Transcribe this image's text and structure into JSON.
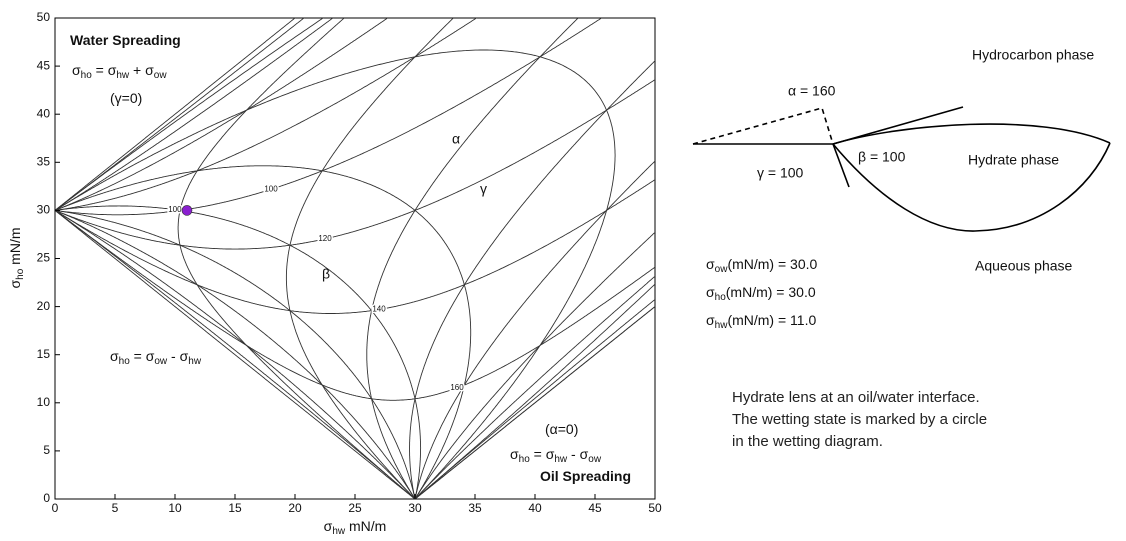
{
  "chart_data": {
    "type": "contour",
    "xlabel": {
      "parts": [
        {
          "t": "σ",
          "sub": "hw"
        },
        {
          "t": " mN/m"
        }
      ]
    },
    "ylabel": {
      "parts": [
        {
          "t": "σ",
          "sub": "ho"
        },
        {
          "t": " mN/m"
        }
      ]
    },
    "xlim": [
      0,
      50
    ],
    "ylim": [
      0,
      50
    ],
    "xticks": [
      0,
      5,
      10,
      15,
      20,
      25,
      30,
      35,
      40,
      45,
      50
    ],
    "yticks": [
      0,
      5,
      10,
      15,
      20,
      25,
      30,
      35,
      40,
      45,
      50
    ],
    "families": [
      {
        "name": "α",
        "levels": [
          0,
          20,
          40,
          60,
          80,
          100,
          120,
          140,
          160
        ]
      },
      {
        "name": "β",
        "levels": [
          20,
          40,
          60,
          80,
          100,
          120,
          140,
          160
        ],
        "labels": [
          100
        ]
      },
      {
        "name": "γ",
        "levels": [
          0,
          20,
          40,
          60,
          80,
          100,
          120,
          140,
          160,
          180
        ],
        "labels": [
          100,
          120,
          140,
          160
        ]
      }
    ],
    "annotations": [
      {
        "parts": [
          {
            "t": "Water Spreading"
          }
        ],
        "bold": true
      },
      {
        "parts": [
          {
            "t": "σ",
            "sub": "ho"
          },
          {
            "t": " = σ",
            "sub": "hw"
          },
          {
            "t": " + σ",
            "sub": "ow"
          }
        ]
      },
      {
        "parts": [
          {
            "t": "(γ=0)"
          }
        ]
      },
      {
        "parts": [
          {
            "t": "σ",
            "sub": "ho"
          },
          {
            "t": " = σ",
            "sub": "ow"
          },
          {
            "t": " - σ",
            "sub": "hw"
          }
        ]
      },
      {
        "parts": [
          {
            "t": "(α=0)"
          }
        ]
      },
      {
        "parts": [
          {
            "t": "σ",
            "sub": "ho"
          },
          {
            "t": " = σ",
            "sub": "hw"
          },
          {
            "t": " - σ",
            "sub": "ow"
          }
        ]
      },
      {
        "parts": [
          {
            "t": "Oil Spreading"
          }
        ],
        "bold": true
      }
    ],
    "point_color": "#8a1fcf",
    "properties": [
      {
        "parts": [
          {
            "t": "σ",
            "sub": "ow"
          },
          {
            "t": "(mN/m) = "
          }
        ],
        "value": 30,
        "value_label": "30.0"
      },
      {
        "parts": [
          {
            "t": "σ",
            "sub": "ho"
          },
          {
            "t": "(mN/m) = "
          }
        ],
        "value": 30,
        "value_label": "30.0"
      },
      {
        "parts": [
          {
            "t": "σ",
            "sub": "hw"
          },
          {
            "t": "(mN/m) = "
          }
        ],
        "value": 11,
        "value_label": "11.0"
      }
    ]
  },
  "panel": {
    "phases": [
      "Hydrocarbon phase",
      "Hydrate phase",
      "Aqueous phase"
    ],
    "angles": [
      "α = 160",
      "β = 100",
      "γ = 100"
    ],
    "caption": [
      "Hydrate lens at an oil/water interface.",
      "The wetting state is marked by a circle",
      "in the wetting diagram."
    ]
  }
}
